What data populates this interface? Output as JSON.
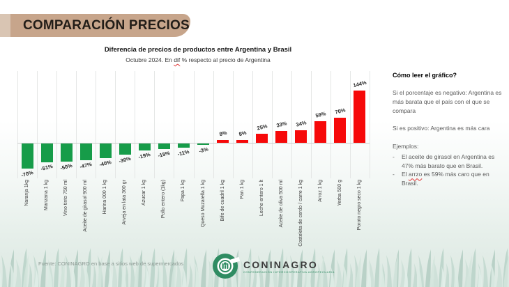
{
  "header": {
    "title": "COMPARACIÓN PRECIOS"
  },
  "chart": {
    "title": "Diferencia de precios de productos entre Argentina y Brasil",
    "subtitle_prefix": "Octubre 2024. En ",
    "subtitle_word": "dif",
    "subtitle_suffix": " % respecto al precio de Argentina"
  },
  "chart_data": {
    "type": "bar",
    "title": "Diferencia de precios de productos entre Argentina y Brasil",
    "subtitle": "Octubre 2024. En dif % respecto al precio de Argentina",
    "categories": [
      "Naranja 1kg",
      "Manzana 1 kg",
      "Vino tinto 750 ml",
      "Aceite de girasol 900 ml",
      "Harina 000 1 kg",
      "Arveja en lata 300 gr",
      "Azucar 1 kg",
      "Pollo entero (1kg)",
      "Papa 1 kg",
      "Queso Muzarella 1 kg",
      "Bife de cuadril 1 kg",
      "Pan 1 kg",
      "Leche entero 1 lt",
      "Aceite de oliva 500 ml",
      "Costeleta de cerdo / carre 1 kg",
      "Arroz 1 kg",
      "Yerba 500 g",
      "Poroto negro seco 1 kg"
    ],
    "values": [
      -70,
      -51,
      -50,
      -47,
      -40,
      -30,
      -19,
      -15,
      -11,
      -3,
      8,
      8,
      25,
      33,
      34,
      59,
      70,
      144
    ],
    "value_labels": [
      "-70%",
      "-51%",
      "-50%",
      "-47%",
      "-40%",
      "-30%",
      "-19%",
      "-15%",
      "-11%",
      "-3%",
      "8%",
      "8%",
      "25%",
      "33%",
      "34%",
      "59%",
      "70%",
      "144%"
    ],
    "unit": "%",
    "ylim": [
      -80,
      160
    ],
    "grid": "vertical-category-separators",
    "legend": "none",
    "negative_color": "#169c49",
    "positive_color": "#f60909"
  },
  "sidebar": {
    "heading": "Cómo leer el gráfico?",
    "para1": "Si el porcentaje es negativo: Argentina es más barata que el país con el que se compara",
    "para2": "Si es positivo: Argentina es más cara",
    "examples_label": "Ejemplos:",
    "bullet_dash": "-",
    "bullet1": "El aceite de girasol en Argentina es 47% más barato que en Brasil.",
    "bullet2_prefix": "El ",
    "bullet2_word": "arrzo",
    "bullet2_suffix": " es 59% más caro que en Brasil."
  },
  "footer": {
    "source": "Fuente: CONINAGRO en base a sitios web de supermercados",
    "logo_name": "CONINAGRO",
    "logo_sub": "CONFEDERACIÓN INTERCOOPERATIVA AGROPECUARIA"
  },
  "colors": {
    "banner": "#c7a58b",
    "banner_accent": "#d9c5b3",
    "bar_negative": "#169c49",
    "bar_positive": "#f60909",
    "logo_green": "#2f8c62",
    "grass_light": "#d2e3db",
    "grass_mid": "#bcd4c9"
  }
}
